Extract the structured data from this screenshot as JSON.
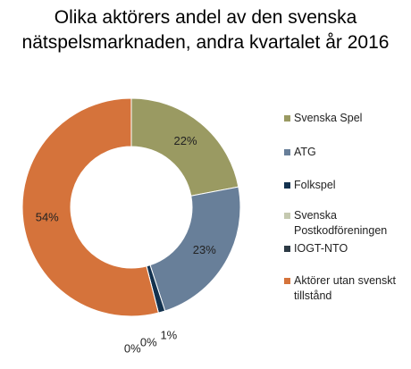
{
  "chart_data": {
    "type": "donut",
    "title": "Olika aktörers andel av den svenska nätspelsmarknaden, andra kvartalet år 2016",
    "categories": [
      "Svenska Spel",
      "ATG",
      "Folkspel",
      "Svenska Postkodföreningen",
      "IOGT-NTO",
      "Aktörer utan svenskt tillstånd"
    ],
    "values": [
      22,
      23,
      1,
      0,
      0,
      54
    ],
    "value_labels": [
      "22%",
      "23%",
      "1%",
      "0%",
      "0%",
      "54%"
    ],
    "colors": [
      "#9a9a62",
      "#687f99",
      "#13324f",
      "#c5c9b0",
      "#2d3a45",
      "#d5733b"
    ],
    "legend": "right"
  }
}
